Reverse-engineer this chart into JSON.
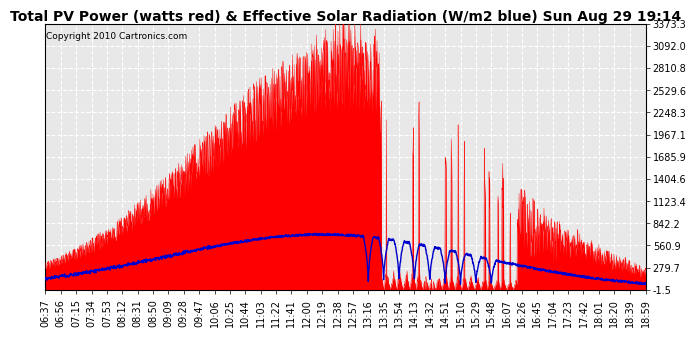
{
  "title": "Total PV Power (watts red) & Effective Solar Radiation (W/m2 blue) Sun Aug 29 19:14",
  "copyright": "Copyright 2010 Cartronics.com",
  "y_min": -1.5,
  "y_max": 3373.3,
  "y_ticks": [
    3373.3,
    3092.0,
    2810.8,
    2529.6,
    2248.3,
    1967.1,
    1685.9,
    1404.6,
    1123.4,
    842.2,
    560.9,
    279.7,
    -1.5
  ],
  "x_labels": [
    "06:37",
    "06:56",
    "07:15",
    "07:34",
    "07:53",
    "08:12",
    "08:31",
    "08:50",
    "09:09",
    "09:28",
    "09:47",
    "10:06",
    "10:25",
    "10:44",
    "11:03",
    "11:22",
    "11:41",
    "12:00",
    "12:19",
    "12:38",
    "12:57",
    "13:16",
    "13:35",
    "13:54",
    "14:13",
    "14:32",
    "14:51",
    "15:10",
    "15:29",
    "15:48",
    "16:07",
    "16:26",
    "16:45",
    "17:04",
    "17:23",
    "17:42",
    "18:01",
    "18:20",
    "18:39",
    "18:59"
  ],
  "background_color": "#ffffff",
  "plot_bg_color": "#e8e8e8",
  "grid_color": "#ffffff",
  "red_color": "#ff0000",
  "blue_color": "#0000cc",
  "title_fontsize": 10,
  "tick_fontsize": 7,
  "copyright_fontsize": 6.5
}
